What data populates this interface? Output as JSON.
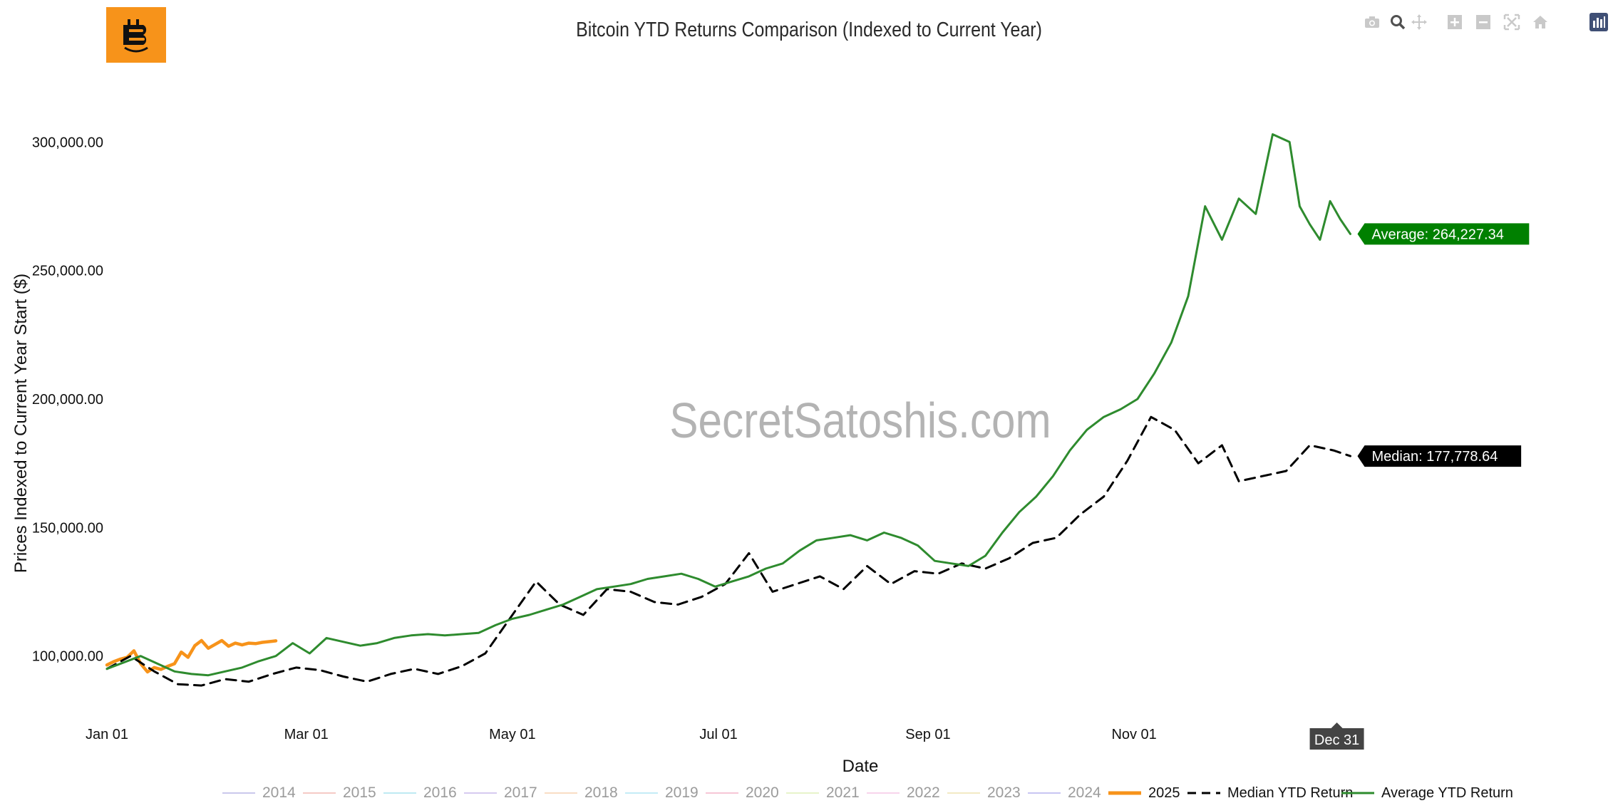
{
  "title": "Bitcoin YTD Returns Comparison (Indexed to Current Year)",
  "watermark": "SecretSatoshis.com",
  "colors": {
    "current_year": "#f7931a",
    "median": "#000000",
    "average": "#2e8b2e",
    "average_label_bg": "#008000",
    "median_label_bg": "#000000",
    "hover_bg": "#444444"
  },
  "modebar": {
    "icons": [
      "camera-icon",
      "zoom-icon",
      "pan-icon",
      "zoom-in-icon",
      "zoom-out-icon",
      "autoscale-icon",
      "reset-axes-icon",
      "plotly-logo-icon"
    ]
  },
  "chart_data": {
    "type": "line",
    "title": "Bitcoin YTD Returns Comparison (Indexed to Current Year)",
    "xlabel": "Date",
    "ylabel": "Prices Indexed to Current Year Start ($)",
    "x_ticks": [
      "Jan 01",
      "Mar 01",
      "May 01",
      "Jul 01",
      "Sep 01",
      "Nov 01"
    ],
    "y_ticks": [
      "100,000.00",
      "150,000.00",
      "200,000.00",
      "250,000.00",
      "300,000.00"
    ],
    "y_tick_values": [
      100000,
      150000,
      200000,
      250000,
      300000
    ],
    "xlim_day_of_year": [
      1,
      425
    ],
    "ylim": [
      78000,
      322000
    ],
    "legend_position": "bottom",
    "grid": false,
    "hover_label": "Dec 31",
    "end_labels": {
      "average": "Average: 264,227.34",
      "median": "Median: 177,778.64"
    },
    "series": [
      {
        "name": "2014",
        "legend_only": true,
        "color": "#b9b6e6"
      },
      {
        "name": "2015",
        "legend_only": true,
        "color": "#f2b9b2"
      },
      {
        "name": "2016",
        "legend_only": true,
        "color": "#a9e3ef"
      },
      {
        "name": "2017",
        "legend_only": true,
        "color": "#c9b8ec"
      },
      {
        "name": "2018",
        "legend_only": true,
        "color": "#f7d2b0"
      },
      {
        "name": "2019",
        "legend_only": true,
        "color": "#b0e6f4"
      },
      {
        "name": "2020",
        "legend_only": true,
        "color": "#f3b4c9"
      },
      {
        "name": "2021",
        "legend_only": true,
        "color": "#dff0b8"
      },
      {
        "name": "2022",
        "legend_only": true,
        "color": "#f5c6e6"
      },
      {
        "name": "2023",
        "legend_only": true,
        "color": "#ede3b0"
      },
      {
        "name": "2024",
        "legend_only": true,
        "color": "#b6b2ee"
      },
      {
        "name": "2025",
        "color": "#f7931a",
        "style": "solid",
        "x": [
          1,
          3,
          5,
          7,
          9,
          11,
          13,
          15,
          17,
          19,
          21,
          23,
          25,
          27,
          29,
          31,
          33,
          35,
          37,
          39,
          41,
          43,
          45,
          47,
          49,
          51
        ],
        "y": [
          96500,
          97800,
          98800,
          99500,
          102000,
          97000,
          93800,
          95500,
          94800,
          96000,
          97000,
          101500,
          99500,
          104000,
          106000,
          103000,
          104500,
          106000,
          103800,
          105000,
          104300,
          105000,
          104800,
          105300,
          105600,
          105900
        ]
      },
      {
        "name": "Median YTD Return",
        "color": "#000000",
        "style": "dash",
        "x": [
          1,
          8,
          15,
          22,
          29,
          36,
          43,
          50,
          57,
          64,
          71,
          78,
          85,
          92,
          99,
          106,
          113,
          121,
          128,
          135,
          142,
          149,
          156,
          163,
          170,
          177,
          184,
          191,
          198,
          205,
          212,
          219,
          226,
          233,
          240,
          247,
          254,
          261,
          268,
          275,
          282,
          289,
          296,
          303,
          310,
          317,
          324,
          331,
          336,
          343,
          350,
          357,
          364,
          369
        ],
        "y": [
          95000,
          100000,
          94000,
          89000,
          88500,
          91000,
          90000,
          93000,
          95500,
          94500,
          92000,
          90000,
          93000,
          95000,
          93000,
          96000,
          101000,
          116000,
          129000,
          120000,
          116000,
          126000,
          125000,
          121000,
          120000,
          123000,
          128000,
          140000,
          125000,
          128000,
          131000,
          126000,
          135000,
          128000,
          133000,
          132000,
          136000,
          134000,
          138000,
          144000,
          146000,
          155000,
          162000,
          176000,
          193000,
          188000,
          175000,
          182000,
          168000,
          170000,
          172000,
          182000,
          180000,
          177779
        ]
      },
      {
        "name": "Average YTD Return",
        "color": "#2e8b2e",
        "style": "solid",
        "x": [
          1,
          6,
          11,
          16,
          21,
          26,
          31,
          36,
          41,
          46,
          51,
          56,
          61,
          66,
          71,
          76,
          81,
          86,
          91,
          96,
          101,
          106,
          111,
          116,
          121,
          126,
          131,
          136,
          141,
          146,
          151,
          156,
          161,
          166,
          171,
          176,
          181,
          186,
          191,
          196,
          201,
          206,
          211,
          216,
          221,
          226,
          231,
          236,
          241,
          246,
          251,
          256,
          261,
          266,
          271,
          276,
          281,
          286,
          291,
          296,
          301,
          306,
          311,
          316,
          321,
          326,
          331,
          336,
          341,
          346,
          351,
          354,
          357,
          360,
          363,
          366,
          369
        ],
        "y": [
          95000,
          97500,
          100000,
          97000,
          94000,
          93000,
          92500,
          94000,
          95500,
          98000,
          100000,
          105000,
          101000,
          107000,
          105500,
          104000,
          105000,
          107000,
          108000,
          108500,
          108000,
          108500,
          109000,
          112000,
          114500,
          116000,
          118000,
          120000,
          123000,
          126000,
          127000,
          128000,
          130000,
          131000,
          132000,
          130000,
          127000,
          129000,
          131000,
          134000,
          136000,
          141000,
          145000,
          146000,
          147000,
          145000,
          148000,
          146000,
          143000,
          137000,
          136000,
          135000,
          139000,
          148000,
          156000,
          162000,
          170000,
          180000,
          188000,
          193000,
          196000,
          200000,
          210000,
          222000,
          240000,
          275000,
          262000,
          278000,
          272000,
          303000,
          300000,
          275000,
          268000,
          262000,
          277000,
          270000,
          264227
        ]
      }
    ]
  }
}
